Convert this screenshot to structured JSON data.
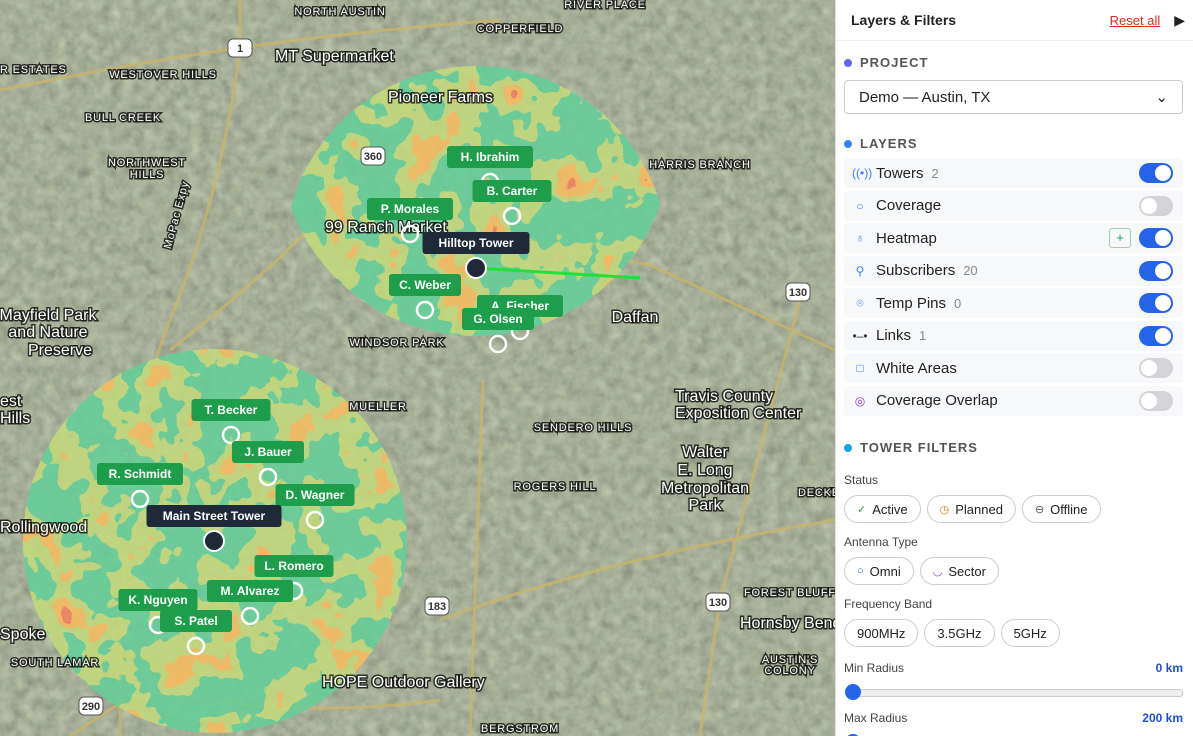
{
  "map": {
    "places": [
      "NORTH AUSTIN",
      "COPPERFIELD",
      "RIVER PLACE",
      "MT Supermarket",
      "R ESTATES",
      "WESTOVER HILLS",
      "Pioneer Farms",
      "BULL CREEK",
      "NORTHWEST",
      "HILLS",
      "HARRIS BRANCH",
      "99 Ranch Market",
      "MoPac Expy",
      "Mayfield Park",
      "and Nature",
      "Preserve",
      "WINDSOR PARK",
      "Daffan",
      "Travis County",
      "Exposition Center",
      "MUELLER",
      "est",
      "Hills",
      "SENDERO HILLS",
      "Walter",
      "E. Long",
      "Metropolitan",
      "Park",
      "ROGERS HILL",
      "DECKER",
      "FOREST BLUFF",
      "Hornsby Bend",
      "AUSTIN'S",
      "COLONY",
      "Rollingwood",
      "Spoke",
      "SOUTH LAMAR",
      "HOPE Outdoor Gallery",
      "BERGSTROM"
    ],
    "shields": [
      "360",
      "1",
      "130",
      "290",
      "183",
      "130"
    ],
    "subscribers": [
      "H. Ibrahim",
      "B. Carter",
      "P. Morales",
      "C. Weber",
      "A. Fischer",
      "G. Olsen",
      "T. Becker",
      "J. Bauer",
      "R. Schmidt",
      "D. Wagner",
      "L. Romero",
      "M. Alvarez",
      "K. Nguyen",
      "S. Patel"
    ],
    "towers": [
      "Hilltop Tower",
      "Main Street Tower"
    ]
  },
  "panel": {
    "title": "Layers & Filters",
    "reset": "Reset all",
    "project": {
      "heading": "PROJECT",
      "selected": "Demo — Austin, TX"
    },
    "layers": {
      "heading": "LAYERS",
      "items": [
        {
          "name": "Towers",
          "count": 2,
          "on": true
        },
        {
          "name": "Coverage",
          "on": false
        },
        {
          "name": "Heatmap",
          "action": "+",
          "on": true
        },
        {
          "name": "Subscribers",
          "count": 20,
          "on": true
        },
        {
          "name": "Temp Pins",
          "count": 0,
          "on": true
        },
        {
          "name": "Links",
          "count": 1,
          "on": true
        },
        {
          "name": "White Areas",
          "on": false
        },
        {
          "name": "Coverage Overlap",
          "on": false
        }
      ]
    },
    "filters": {
      "heading": "TOWER FILTERS",
      "groups": [
        {
          "label": "Status",
          "options": [
            "Active",
            "Planned",
            "Offline"
          ]
        },
        {
          "label": "Antenna Type",
          "options": [
            "Omni",
            "Sector"
          ]
        },
        {
          "label": "Frequency Band",
          "options": [
            "900MHz",
            "3.5GHz",
            "5GHz"
          ]
        }
      ],
      "min_radius": {
        "label": "Min Radius",
        "value": "0 km"
      },
      "max_radius": {
        "label": "Max Radius",
        "value": "200 km"
      }
    }
  }
}
